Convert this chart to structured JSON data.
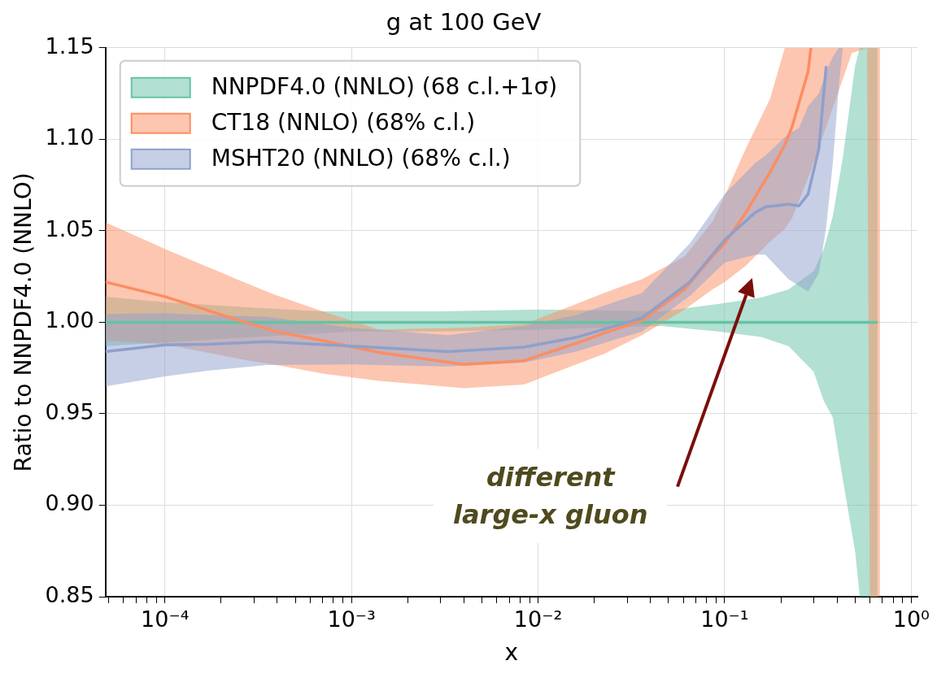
{
  "chart_data": {
    "type": "line",
    "title": "g at 100 GeV",
    "xlabel": "x",
    "ylabel": "Ratio to NNPDF4.0 (NNLO)",
    "log": "x",
    "grid": true,
    "legend": "top left",
    "xlim": [
      4.8e-05,
      1.08
    ],
    "ylim": [
      0.85,
      1.15
    ],
    "xticks": [
      {
        "value": 5e-05,
        "label": null
      },
      {
        "value": 6e-05,
        "label": null
      },
      {
        "value": 7e-05,
        "label": null
      },
      {
        "value": 8e-05,
        "label": null
      },
      {
        "value": 9e-05,
        "label": null
      },
      {
        "value": 0.0001,
        "label": "10⁻⁴"
      },
      {
        "value": 0.0002,
        "label": null
      },
      {
        "value": 0.0003,
        "label": null
      },
      {
        "value": 0.0004,
        "label": null
      },
      {
        "value": 0.0005,
        "label": null
      },
      {
        "value": 0.0006,
        "label": null
      },
      {
        "value": 0.0007,
        "label": null
      },
      {
        "value": 0.0008,
        "label": null
      },
      {
        "value": 0.0009,
        "label": null
      },
      {
        "value": 0.001,
        "label": "10⁻³"
      },
      {
        "value": 0.002,
        "label": null
      },
      {
        "value": 0.003,
        "label": null
      },
      {
        "value": 0.004,
        "label": null
      },
      {
        "value": 0.005,
        "label": null
      },
      {
        "value": 0.006,
        "label": null
      },
      {
        "value": 0.007,
        "label": null
      },
      {
        "value": 0.008,
        "label": null
      },
      {
        "value": 0.009,
        "label": null
      },
      {
        "value": 0.01,
        "label": "10⁻²"
      },
      {
        "value": 0.02,
        "label": null
      },
      {
        "value": 0.03,
        "label": null
      },
      {
        "value": 0.04,
        "label": null
      },
      {
        "value": 0.05,
        "label": null
      },
      {
        "value": 0.06,
        "label": null
      },
      {
        "value": 0.07,
        "label": null
      },
      {
        "value": 0.08,
        "label": null
      },
      {
        "value": 0.09,
        "label": null
      },
      {
        "value": 0.1,
        "label": "10⁻¹"
      },
      {
        "value": 0.2,
        "label": null
      },
      {
        "value": 0.3,
        "label": null
      },
      {
        "value": 0.4,
        "label": null
      },
      {
        "value": 0.5,
        "label": null
      },
      {
        "value": 0.6,
        "label": null
      },
      {
        "value": 0.7,
        "label": null
      },
      {
        "value": 0.8,
        "label": null
      },
      {
        "value": 0.9,
        "label": null
      },
      {
        "value": 1,
        "label": "10⁰"
      }
    ],
    "yticks": [
      0.85,
      {
        "value": 0.9,
        "label": "0.90"
      },
      0.95,
      {
        "value": 1.0,
        "label": "1.00"
      },
      1.05,
      {
        "value": 1.1,
        "label": "1.10"
      },
      1.15
    ],
    "series": [
      {
        "name": "NNPDF4.0 (NNLO) (68 c.l.+1σ)",
        "color": "#66c2a5",
        "x": [
          4.8e-05,
          0.0001,
          0.0003,
          0.0007,
          0.001,
          0.003,
          0.01,
          0.046,
          0.092,
          0.157,
          0.22,
          0.3,
          0.34,
          0.38,
          0.43,
          0.5,
          0.53,
          0.6,
          0.66
        ],
        "values": [
          1,
          1,
          1,
          1,
          1,
          1,
          1,
          1,
          1,
          1,
          1,
          1,
          1,
          1,
          1,
          1,
          1,
          1,
          1
        ],
        "upper": [
          1.014,
          1.011,
          1.008,
          1.006,
          1.006,
          1.006,
          1.007,
          1.006,
          1.01,
          1.0135,
          1.018,
          1.028,
          1.04,
          1.058,
          1.09,
          1.14,
          1.15,
          1.15,
          1.15
        ],
        "lower": [
          0.987,
          0.989,
          0.992,
          0.994,
          0.995,
          0.995,
          0.996,
          0.998,
          0.995,
          0.992,
          0.987,
          0.973,
          0.957,
          0.948,
          0.914,
          0.875,
          0.85,
          0.85,
          0.85
        ]
      },
      {
        "name": "CT18 (NNLO) (68% c.l.)",
        "color": "#fc8d62",
        "x": [
          4.8e-05,
          0.0001,
          0.00025,
          0.00039,
          0.0007,
          0.0014,
          0.004,
          0.0084,
          0.016,
          0.0225,
          0.036,
          0.061,
          0.086,
          0.1,
          0.13,
          0.175,
          0.21,
          0.23,
          0.28,
          0.29,
          0.48,
          0.58,
          0.6,
          0.68
        ],
        "values": [
          1.022,
          1.014,
          1.001,
          0.995,
          0.99,
          0.9835,
          0.977,
          0.979,
          0.9885,
          0.994,
          1.001,
          1.018,
          1.036,
          1.043,
          1.06,
          1.082,
          1.097,
          1.107,
          1.137,
          1.15,
          null,
          null,
          null,
          null
        ],
        "upper": [
          1.0546,
          1.04,
          1.023,
          1.015,
          1.006,
          0.996,
          0.997,
          0.999,
          1.01,
          1.016,
          1.0235,
          1.036,
          1.055,
          1.069,
          1.095,
          1.122,
          1.15,
          1.15,
          1.15,
          1.15,
          1.15,
          1.15,
          1.15,
          1.15
        ],
        "lower": [
          0.99,
          0.988,
          0.98,
          0.9767,
          0.972,
          0.968,
          0.964,
          0.966,
          0.977,
          0.9826,
          0.993,
          1.007,
          1.018,
          1.022,
          1.031,
          1.044,
          1.051,
          1.057,
          1.079,
          1.083,
          1.147,
          1.15,
          0.85,
          0.85
        ]
      },
      {
        "name": "MSHT20 (NNLO) (68% c.l.)",
        "color": "#8da0cb",
        "x": [
          4.8e-05,
          0.0001,
          0.00017,
          0.00035,
          0.001,
          0.0033,
          0.0084,
          0.016,
          0.036,
          0.065,
          0.1,
          0.146,
          0.165,
          0.22,
          0.25,
          0.28,
          0.32,
          0.35,
          0.38,
          0.41,
          0.43
        ],
        "values": [
          0.984,
          0.9876,
          0.988,
          0.9894,
          0.987,
          0.984,
          0.9864,
          0.9917,
          1.0023,
          1.022,
          1.045,
          1.06,
          1.063,
          1.0645,
          1.0636,
          1.07,
          1.095,
          1.14,
          null,
          null,
          null
        ],
        "upper": [
          1.0045,
          1.005,
          1.004,
          1.003,
          0.997,
          0.993,
          0.998,
          1.004,
          1.016,
          1.043,
          1.07,
          1.087,
          1.091,
          1.103,
          1.106,
          1.118,
          1.125,
          1.137,
          1.145,
          1.15,
          1.15
        ],
        "lower": [
          0.965,
          0.9704,
          0.9735,
          0.9766,
          0.977,
          0.9758,
          0.978,
          0.984,
          0.995,
          1.0144,
          1.0326,
          1.037,
          1.037,
          1.0235,
          1.02,
          1.0167,
          1.027,
          1.052,
          1.087,
          1.13,
          1.15
        ]
      }
    ],
    "annotations": [
      "different\nlarge-x gluon"
    ]
  }
}
